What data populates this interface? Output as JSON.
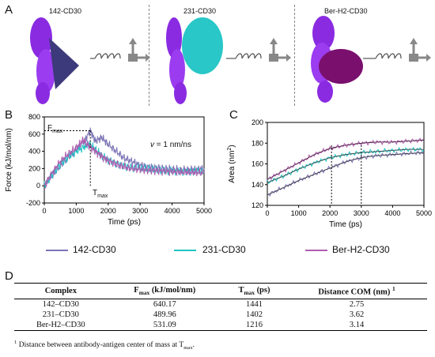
{
  "panel_a": {
    "letter": "A",
    "structures": [
      {
        "label": "142-CD30",
        "antibody_color": "#3d3a7c",
        "antigen_color": "#8a2be2"
      },
      {
        "label": "231-CD30",
        "antibody_color": "#29c7c7",
        "antigen_color": "#8a2be2"
      },
      {
        "label": "Ber-H2-CD30",
        "antibody_color": "#7a0f6e",
        "antigen_color": "#8a2be2"
      }
    ]
  },
  "panel_b": {
    "letter": "B",
    "fmax_label": "F",
    "fmax_sub": "max",
    "tmax_label": "T",
    "tmax_sub": "max",
    "velocity_prefix": "v",
    "velocity_text": " = 1 nm/ns",
    "ylabel": "Force (kJ/mol/nm)",
    "xlabel": "Time (ps)"
  },
  "panel_c": {
    "letter": "C",
    "ylabel_main": "Area (nm",
    "ylabel_sup": "2",
    "ylabel_end": ")",
    "xlabel": "Time (ps)"
  },
  "chart_data": [
    {
      "type": "line",
      "ylabel": "Force (kJ/mol/nm)",
      "xlabel": "Time (ps)",
      "xlim": [
        0,
        5000
      ],
      "ylim": [
        -200,
        800
      ],
      "xticks": [
        0,
        1000,
        2000,
        3000,
        4000,
        5000
      ],
      "yticks": [
        -200,
        0,
        200,
        400,
        600,
        800
      ],
      "annotations": {
        "Fmax_y": 640,
        "Tmax_x": 1441
      },
      "series": [
        {
          "name": "142-CD30",
          "color": "#7b74b6",
          "x": [
            0,
            250,
            500,
            750,
            1000,
            1250,
            1441,
            1600,
            1800,
            2000,
            2250,
            2500,
            2750,
            3000,
            3250,
            3500,
            3750,
            4000,
            4250,
            4500,
            4750,
            5000
          ],
          "y": [
            0,
            120,
            230,
            330,
            420,
            520,
            640,
            520,
            560,
            480,
            400,
            320,
            280,
            240,
            220,
            210,
            200,
            190,
            180,
            185,
            190,
            200
          ]
        },
        {
          "name": "231-CD30",
          "color": "#1fc4c4",
          "x": [
            0,
            250,
            500,
            750,
            1000,
            1250,
            1402,
            1600,
            1800,
            2000,
            2250,
            2500,
            2750,
            3000,
            3250,
            3500,
            3750,
            4000,
            4250,
            4500,
            4750,
            5000
          ],
          "y": [
            0,
            130,
            250,
            340,
            400,
            450,
            490,
            420,
            350,
            300,
            260,
            230,
            210,
            200,
            190,
            180,
            170,
            175,
            170,
            165,
            170,
            160
          ]
        },
        {
          "name": "Ber-H2-CD30",
          "color": "#b05db0",
          "x": [
            0,
            250,
            500,
            750,
            1000,
            1216,
            1400,
            1600,
            1800,
            2000,
            2250,
            2500,
            2750,
            3000,
            3250,
            3500,
            3750,
            4000,
            4250,
            4500,
            4750,
            5000
          ],
          "y": [
            0,
            150,
            280,
            370,
            440,
            531,
            460,
            400,
            340,
            290,
            250,
            220,
            200,
            190,
            180,
            175,
            170,
            165,
            160,
            160,
            155,
            150
          ]
        }
      ]
    },
    {
      "type": "line",
      "ylabel": "Area (nm2)",
      "xlabel": "Time (ps)",
      "xlim": [
        0,
        5000
      ],
      "ylim": [
        120,
        200
      ],
      "xticks": [
        0,
        1000,
        2000,
        3000,
        4000,
        5000
      ],
      "yticks": [
        120,
        140,
        160,
        180,
        200
      ],
      "annotations": {
        "vlines": [
          2050,
          3000
        ]
      },
      "series": [
        {
          "name": "142-CD30",
          "color": "#7b74b6",
          "x": [
            0,
            500,
            1000,
            1500,
            2000,
            2500,
            3000,
            3500,
            4000,
            4500,
            5000
          ],
          "y": [
            130,
            137,
            144,
            150,
            156,
            162,
            166,
            168,
            169,
            170,
            171
          ]
        },
        {
          "name": "231-CD30",
          "color": "#1fc4c4",
          "x": [
            0,
            500,
            1000,
            1500,
            2000,
            2500,
            3000,
            3500,
            4000,
            4500,
            5000
          ],
          "y": [
            142,
            148,
            155,
            161,
            166,
            169,
            171,
            172,
            173,
            174,
            174
          ]
        },
        {
          "name": "Ber-H2-CD30",
          "color": "#b05db0",
          "x": [
            0,
            500,
            1000,
            1500,
            2000,
            2500,
            3000,
            3500,
            4000,
            4500,
            5000
          ],
          "y": [
            145,
            153,
            161,
            169,
            175,
            178,
            180,
            181,
            181,
            182,
            183
          ]
        }
      ]
    }
  ],
  "legend": [
    {
      "label": "142-CD30",
      "color": "#7b74b6"
    },
    {
      "label": "231-CD30",
      "color": "#1fc4c4"
    },
    {
      "label": "Ber-H2-CD30",
      "color": "#b05db0"
    }
  ],
  "panel_d": {
    "letter": "D",
    "headers": {
      "complex": "Complex",
      "fmax_main": "F",
      "fmax_sub": "max",
      "fmax_unit": " (kJ/mol/nm)",
      "tmax_main": "T",
      "tmax_sub": "max",
      "tmax_unit": " (ps)",
      "dist": "Distance COM (nm) ",
      "dist_sup": "1"
    },
    "rows": [
      {
        "complex": "142–CD30",
        "fmax": "640.17",
        "tmax": "1441",
        "dist": "2.75"
      },
      {
        "complex": "231–CD30",
        "fmax": "489.96",
        "tmax": "1402",
        "dist": "3.62"
      },
      {
        "complex": "Ber-H2–CD30",
        "fmax": "531.09",
        "tmax": "1216",
        "dist": "3.14"
      }
    ],
    "footnote_sup": "1",
    "footnote_text": " Distance between antibody-antigen center of mass at T",
    "footnote_sub": "max",
    "footnote_end": "."
  }
}
